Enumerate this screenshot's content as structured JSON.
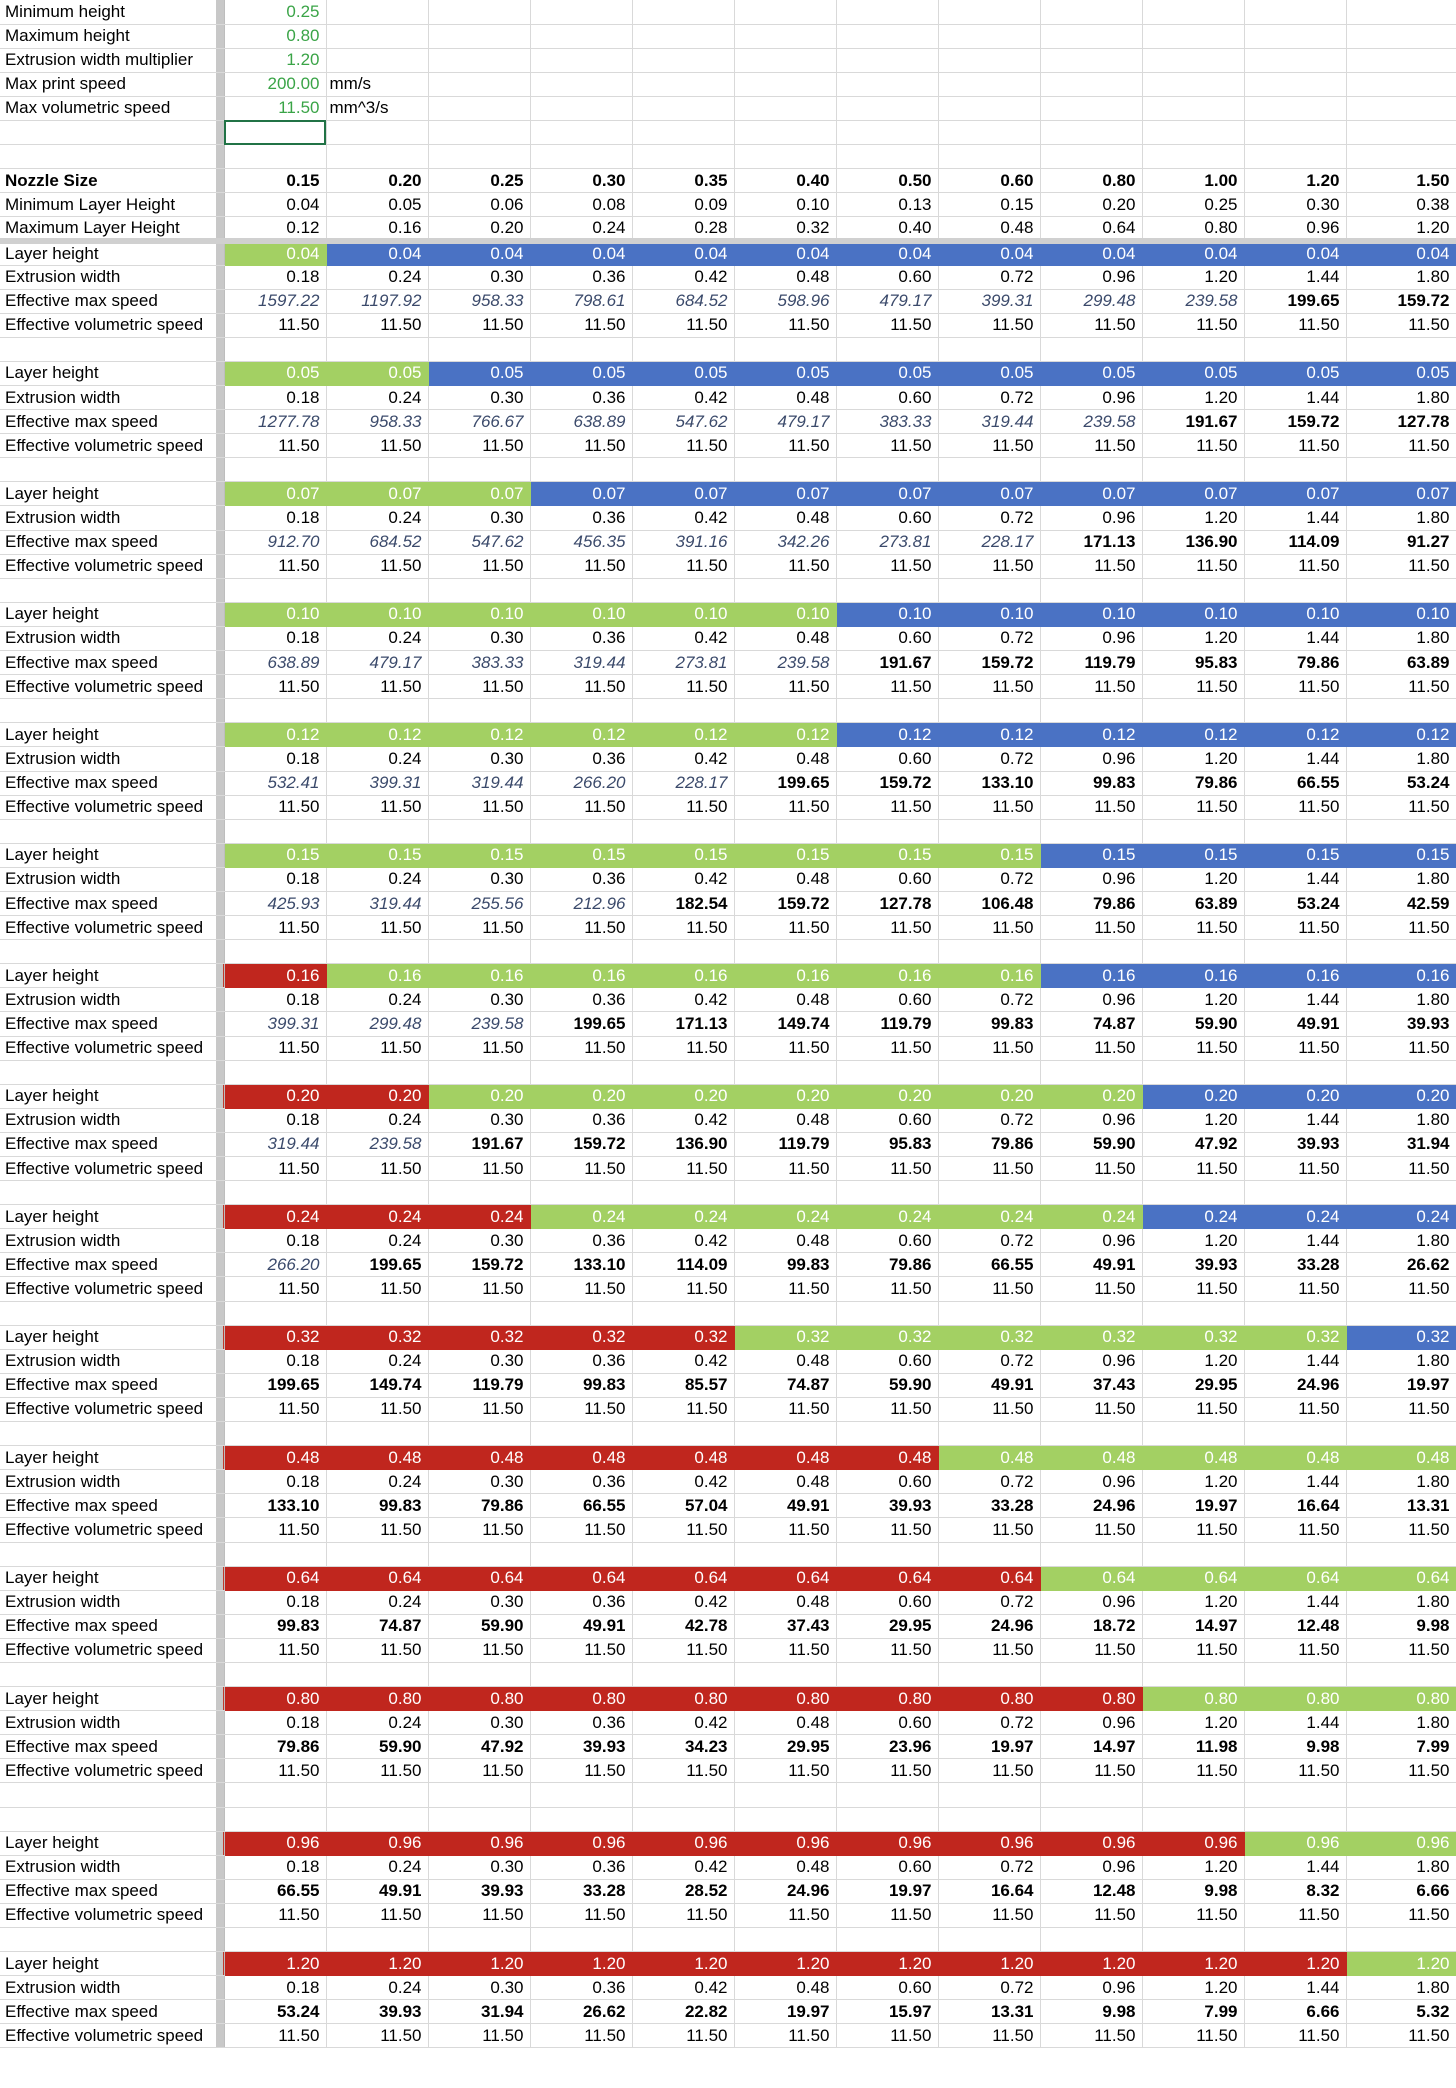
{
  "params": [
    {
      "label": "Minimum height",
      "value": "0.25",
      "unit": ""
    },
    {
      "label": "Maximum height",
      "value": "0.80",
      "unit": ""
    },
    {
      "label": "Extrusion width multiplier",
      "value": "1.20",
      "unit": ""
    },
    {
      "label": "Max print speed",
      "value": "200.00",
      "unit": "mm/s"
    },
    {
      "label": "Max volumetric speed",
      "value": "11.50",
      "unit": "mm^3/s"
    }
  ],
  "nozzle": {
    "label": "Nozzle Size",
    "values": [
      "0.15",
      "0.20",
      "0.25",
      "0.30",
      "0.35",
      "0.40",
      "0.50",
      "0.60",
      "0.80",
      "1.00",
      "1.20",
      "1.50"
    ],
    "min_label": "Minimum Layer Height",
    "min": [
      "0.04",
      "0.05",
      "0.06",
      "0.08",
      "0.09",
      "0.10",
      "0.13",
      "0.15",
      "0.20",
      "0.25",
      "0.30",
      "0.38"
    ],
    "max_label": "Maximum Layer Height",
    "max": [
      "0.12",
      "0.16",
      "0.20",
      "0.24",
      "0.28",
      "0.32",
      "0.40",
      "0.48",
      "0.64",
      "0.80",
      "0.96",
      "1.20"
    ]
  },
  "row_labels": {
    "layer": "Layer height",
    "width": "Extrusion width",
    "speed": "Effective max speed",
    "vol": "Effective volumetric speed"
  },
  "extrusion_widths": [
    "0.18",
    "0.24",
    "0.30",
    "0.36",
    "0.42",
    "0.48",
    "0.60",
    "0.72",
    "0.96",
    "1.20",
    "1.44",
    "1.80"
  ],
  "legend_colors": {
    "g": "#a3d063",
    "b": "#4a72c4",
    "r": "#c0261e"
  },
  "blocks": [
    {
      "layer": "0.04",
      "colors": "gbbbbbbbbbbb",
      "speeds": [
        "1597.22",
        "1197.92",
        "958.33",
        "798.61",
        "684.52",
        "598.96",
        "479.17",
        "399.31",
        "299.48",
        "239.58",
        "199.65",
        "159.72"
      ],
      "vol": "11.50"
    },
    {
      "layer": "0.05",
      "colors": "ggbbbbbbbbbb",
      "speeds": [
        "1277.78",
        "958.33",
        "766.67",
        "638.89",
        "547.62",
        "479.17",
        "383.33",
        "319.44",
        "239.58",
        "191.67",
        "159.72",
        "127.78"
      ],
      "vol": "11.50"
    },
    {
      "layer": "0.07",
      "colors": "gggbbbbbbbbb",
      "speeds": [
        "912.70",
        "684.52",
        "547.62",
        "456.35",
        "391.16",
        "342.26",
        "273.81",
        "228.17",
        "171.13",
        "136.90",
        "114.09",
        "91.27"
      ],
      "vol": "11.50"
    },
    {
      "layer": "0.10",
      "colors": "ggggggbbbbbb",
      "speeds": [
        "638.89",
        "479.17",
        "383.33",
        "319.44",
        "273.81",
        "239.58",
        "191.67",
        "159.72",
        "119.79",
        "95.83",
        "79.86",
        "63.89"
      ],
      "vol": "11.50"
    },
    {
      "layer": "0.12",
      "colors": "ggggggbbbbbb",
      "speeds": [
        "532.41",
        "399.31",
        "319.44",
        "266.20",
        "228.17",
        "199.65",
        "159.72",
        "133.10",
        "99.83",
        "79.86",
        "66.55",
        "53.24"
      ],
      "vol": "11.50"
    },
    {
      "layer": "0.15",
      "colors": "ggggggggbbbb",
      "speeds": [
        "425.93",
        "319.44",
        "255.56",
        "212.96",
        "182.54",
        "159.72",
        "127.78",
        "106.48",
        "79.86",
        "63.89",
        "53.24",
        "42.59"
      ],
      "vol": "11.50"
    },
    {
      "layer": "0.16",
      "colors": "rgggggggbbbb",
      "speeds": [
        "399.31",
        "299.48",
        "239.58",
        "199.65",
        "171.13",
        "149.74",
        "119.79",
        "99.83",
        "74.87",
        "59.90",
        "49.91",
        "39.93"
      ],
      "vol": "11.50"
    },
    {
      "layer": "0.20",
      "colors": "rrgggggggbbb",
      "speeds": [
        "319.44",
        "239.58",
        "191.67",
        "159.72",
        "136.90",
        "119.79",
        "95.83",
        "79.86",
        "59.90",
        "47.92",
        "39.93",
        "31.94"
      ],
      "vol": "11.50"
    },
    {
      "layer": "0.24",
      "colors": "rrrggggggbbb",
      "speeds": [
        "266.20",
        "199.65",
        "159.72",
        "133.10",
        "114.09",
        "99.83",
        "79.86",
        "66.55",
        "49.91",
        "39.93",
        "33.28",
        "26.62"
      ],
      "vol": "11.50"
    },
    {
      "layer": "0.32",
      "colors": "rrrrrggggggb",
      "speeds": [
        "199.65",
        "149.74",
        "119.79",
        "99.83",
        "85.57",
        "74.87",
        "59.90",
        "49.91",
        "37.43",
        "29.95",
        "24.96",
        "19.97"
      ],
      "vol": "11.50"
    },
    {
      "layer": "0.48",
      "colors": "rrrrrrrggggg",
      "speeds": [
        "133.10",
        "99.83",
        "79.86",
        "66.55",
        "57.04",
        "49.91",
        "39.93",
        "33.28",
        "24.96",
        "19.97",
        "16.64",
        "13.31"
      ],
      "vol": "11.50"
    },
    {
      "layer": "0.64",
      "colors": "rrrrrrrrgggg",
      "speeds": [
        "99.83",
        "74.87",
        "59.90",
        "49.91",
        "42.78",
        "37.43",
        "29.95",
        "24.96",
        "18.72",
        "14.97",
        "12.48",
        "9.98"
      ],
      "vol": "11.50"
    },
    {
      "layer": "0.80",
      "colors": "rrrrrrrrrggg",
      "speeds": [
        "79.86",
        "59.90",
        "47.92",
        "39.93",
        "34.23",
        "29.95",
        "23.96",
        "19.97",
        "14.97",
        "11.98",
        "9.98",
        "7.99"
      ],
      "vol": "11.50"
    },
    {
      "layer": "0.96",
      "colors": "rrrrrrrrrrgg",
      "speeds": [
        "66.55",
        "49.91",
        "39.93",
        "33.28",
        "28.52",
        "24.96",
        "19.97",
        "16.64",
        "12.48",
        "9.98",
        "8.32",
        "6.66"
      ],
      "vol": "11.50"
    },
    {
      "layer": "1.20",
      "colors": "rrrrrrrrrrrg",
      "speeds": [
        "53.24",
        "39.93",
        "31.94",
        "26.62",
        "22.82",
        "19.97",
        "15.97",
        "13.31",
        "9.98",
        "7.99",
        "6.66",
        "5.32"
      ],
      "vol": "11.50"
    }
  ]
}
